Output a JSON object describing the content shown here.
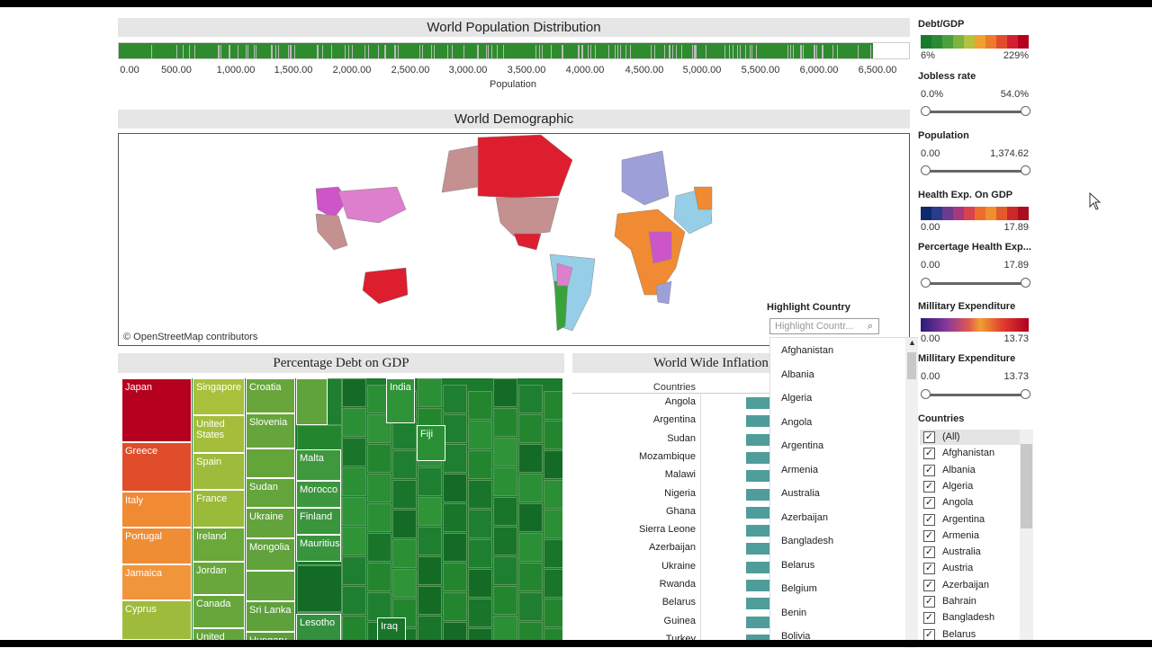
{
  "population_distribution": {
    "title": "World Population Distribution",
    "ticks": [
      "0.00",
      "500.00",
      "1,000.00",
      "1,500.00",
      "2,000.00",
      "2,500.00",
      "3,000.00",
      "3,500.00",
      "4,000.00",
      "4,500.00",
      "5,000.00",
      "5,500.00",
      "6,000.00",
      "6,500.00"
    ],
    "axis_label": "Population"
  },
  "world_demographic": {
    "title": "World Demographic",
    "attribution": "© OpenStreetMap contributors"
  },
  "highlight_country": {
    "label": "Highlight Country",
    "placeholder": "Highlight Countr...",
    "options": [
      "Afghanistan",
      "Albania",
      "Algeria",
      "Angola",
      "Argentina",
      "Armenia",
      "Australia",
      "Azerbaijan",
      "Bangladesh",
      "Belarus",
      "Belgium",
      "Benin",
      "Bolivia"
    ]
  },
  "debt_treemap": {
    "title": "Percentage Debt on GDP",
    "cells": [
      "Japan",
      "Greece",
      "Italy",
      "Portugal",
      "Jamaica",
      "Cyprus",
      "Singapore",
      "United States",
      "Spain",
      "France",
      "Ireland",
      "Jordan",
      "Canada",
      "United",
      "Croatia",
      "Slovenia",
      "Sudan",
      "Ukraine",
      "Mongolia",
      "Sri Lanka",
      "Hungary",
      "Malta",
      "Morocco",
      "Finland",
      "Mauritius",
      "Lesotho",
      "India",
      "Fiji",
      "Iraq"
    ]
  },
  "inflation": {
    "title": "World Wide Inflation",
    "column_header": "Countries",
    "countries": [
      "Angola",
      "Argentina",
      "Sudan",
      "Mozambique",
      "Malawi",
      "Nigeria",
      "Ghana",
      "Sierra Leone",
      "Azerbaijan",
      "Ukraine",
      "Rwanda",
      "Belarus",
      "Guinea",
      "Turkey"
    ]
  },
  "filters": {
    "debt_gdp": {
      "label": "Debt/GDP",
      "min": "6%",
      "max": "229%"
    },
    "jobless_rate": {
      "label": "Jobless rate",
      "min": "0.0%",
      "max": "54.0%"
    },
    "population": {
      "label": "Population",
      "min": "0.00",
      "max": "1,374.62"
    },
    "health_exp_gdp": {
      "label": "Health Exp. On GDP",
      "min": "0.00",
      "max": "17.89"
    },
    "percentage_health_exp": {
      "label": "Percertage Health Exp...",
      "min": "0.00",
      "max": "17.89"
    },
    "military_exp_color": {
      "label": "Millitary Expenditure",
      "min": "0.00",
      "max": "13.73"
    },
    "military_exp_range": {
      "label": "Millitary Expenditure",
      "min": "0.00",
      "max": "13.73"
    },
    "countries": {
      "label": "Countries",
      "items": [
        "(All)",
        "Afghanistan",
        "Albania",
        "Algeria",
        "Angola",
        "Argentina",
        "Armenia",
        "Australia",
        "Austria",
        "Azerbaijan",
        "Bahrain",
        "Bangladesh",
        "Belarus"
      ]
    }
  }
}
